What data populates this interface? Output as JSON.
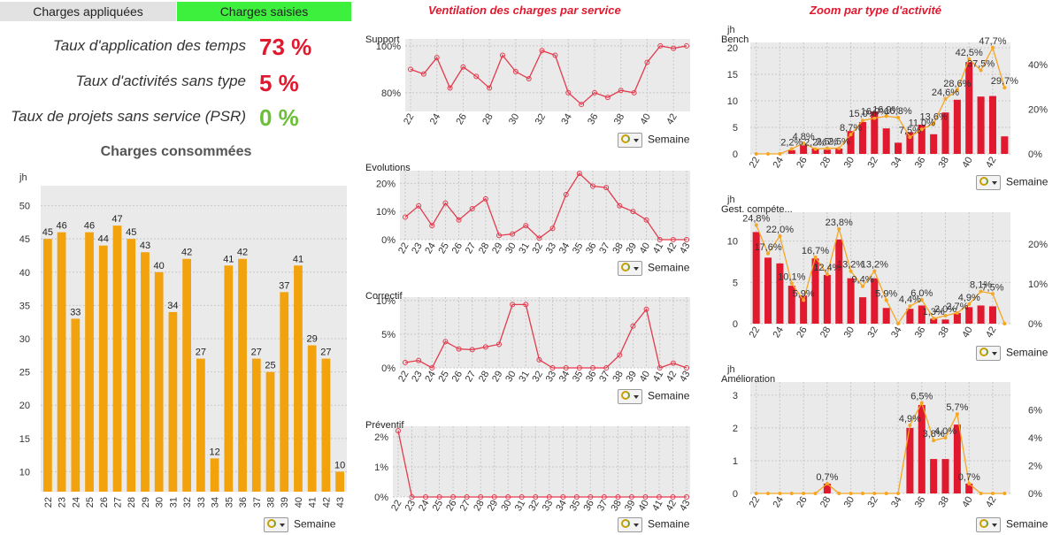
{
  "tabs": [
    {
      "label": "Charges appliquées",
      "active": false
    },
    {
      "label": "Charges saisies",
      "active": true
    }
  ],
  "kpis": [
    {
      "label": "Taux d'application des temps",
      "value": "73 %",
      "color": "#e0192f"
    },
    {
      "label": "Taux d'activités sans type",
      "value": "5 %",
      "color": "#e0192f"
    },
    {
      "label": "Taux de projets sans service (PSR)",
      "value": "0 %",
      "color": "#6cbf3a"
    }
  ],
  "sections": {
    "ventilation_title": "Ventilation des charges par service",
    "zoom_title": "Zoom par type d'activité"
  },
  "week_selector": {
    "label": "Semaine"
  },
  "colors": {
    "accent_red": "#e0192f",
    "bar_orange": "#f2a20c",
    "line_red": "#e23b4e",
    "line_orange": "#f5a623",
    "plot_bg": "#eaeaea"
  },
  "chart_data": [
    {
      "id": "consumed",
      "type": "bar",
      "title": "Charges consommées",
      "ylabel": "jh",
      "xlabel": "",
      "categories": [
        "22",
        "23",
        "24",
        "25",
        "26",
        "27",
        "28",
        "29",
        "30",
        "31",
        "32",
        "33",
        "34",
        "35",
        "36",
        "37",
        "38",
        "39",
        "40",
        "41",
        "42",
        "43"
      ],
      "values": [
        45,
        46,
        33,
        46,
        44,
        47,
        45,
        43,
        40,
        34,
        42,
        27,
        12,
        41,
        42,
        27,
        25,
        37,
        41,
        29,
        27,
        10
      ],
      "ylim": [
        7,
        53
      ],
      "yticks": [
        10,
        15,
        20,
        25,
        30,
        35,
        40,
        45,
        50
      ],
      "grid": true
    },
    {
      "id": "support",
      "type": "line",
      "title": "Support",
      "x": [
        "22",
        "23",
        "24",
        "25",
        "26",
        "27",
        "28",
        "29",
        "30",
        "31",
        "32",
        "33",
        "34",
        "35",
        "36",
        "37",
        "38",
        "39",
        "40",
        "41",
        "42",
        "43"
      ],
      "values": [
        0.9,
        0.88,
        0.95,
        0.82,
        0.91,
        0.87,
        0.82,
        0.96,
        0.89,
        0.86,
        0.98,
        0.96,
        0.8,
        0.75,
        0.8,
        0.78,
        0.81,
        0.8,
        0.93,
        1.0,
        0.99,
        1.0
      ],
      "ylim": [
        0.72,
        1.03
      ],
      "yticks": [
        {
          "v": 0.8,
          "label": "80%"
        },
        {
          "v": 1.0,
          "label": "100%"
        }
      ],
      "xticks": [
        "22",
        "24",
        "26",
        "28",
        "30",
        "32",
        "34",
        "36",
        "38",
        "40",
        "42"
      ]
    },
    {
      "id": "evolutions",
      "type": "line",
      "title": "Evolutions",
      "x": [
        "22",
        "23",
        "24",
        "25",
        "26",
        "27",
        "28",
        "29",
        "30",
        "31",
        "32",
        "33",
        "34",
        "35",
        "36",
        "37",
        "38",
        "39",
        "40",
        "41",
        "42",
        "43"
      ],
      "values": [
        0.08,
        0.12,
        0.05,
        0.13,
        0.07,
        0.11,
        0.145,
        0.015,
        0.02,
        0.05,
        0.005,
        0.04,
        0.16,
        0.235,
        0.19,
        0.185,
        0.12,
        0.1,
        0.07,
        0.0,
        0.0,
        0.0
      ],
      "ylim": [
        0,
        0.245
      ],
      "yticks": [
        {
          "v": 0,
          "label": "0%"
        },
        {
          "v": 0.1,
          "label": "10%"
        },
        {
          "v": 0.2,
          "label": "20%"
        }
      ],
      "xticks": [
        "22",
        "23",
        "24",
        "25",
        "26",
        "27",
        "28",
        "29",
        "30",
        "31",
        "32",
        "33",
        "34",
        "35",
        "36",
        "37",
        "38",
        "39",
        "40",
        "41",
        "42",
        "43"
      ]
    },
    {
      "id": "correctif",
      "type": "line",
      "title": "Correctif",
      "x": [
        "22",
        "23",
        "24",
        "25",
        "26",
        "27",
        "28",
        "29",
        "30",
        "31",
        "32",
        "33",
        "34",
        "35",
        "36",
        "37",
        "38",
        "39",
        "40",
        "41",
        "42",
        "43"
      ],
      "values": [
        0.008,
        0.011,
        0.0,
        0.039,
        0.028,
        0.027,
        0.031,
        0.035,
        0.094,
        0.094,
        0.012,
        0.0,
        0.0,
        0.0,
        0.0,
        0.0,
        0.019,
        0.062,
        0.087,
        0.0,
        0.007,
        0.0
      ],
      "ylim": [
        0,
        0.105
      ],
      "yticks": [
        {
          "v": 0,
          "label": "0%"
        },
        {
          "v": 0.05,
          "label": "5%"
        },
        {
          "v": 0.1,
          "label": "10%"
        }
      ],
      "xticks": [
        "22",
        "23",
        "24",
        "25",
        "26",
        "27",
        "28",
        "29",
        "30",
        "31",
        "32",
        "33",
        "34",
        "35",
        "36",
        "37",
        "38",
        "39",
        "40",
        "41",
        "42",
        "43"
      ]
    },
    {
      "id": "preventif",
      "type": "line",
      "title": "Préventif",
      "x": [
        "22",
        "23",
        "24",
        "25",
        "26",
        "27",
        "28",
        "29",
        "30",
        "31",
        "32",
        "33",
        "34",
        "35",
        "36",
        "37",
        "38",
        "39",
        "40",
        "41",
        "42",
        "43"
      ],
      "values": [
        0.022,
        0,
        0,
        0,
        0,
        0,
        0,
        0,
        0,
        0,
        0,
        0,
        0,
        0,
        0,
        0,
        0,
        0,
        0,
        0,
        0,
        0
      ],
      "ylim": [
        0,
        0.0235
      ],
      "yticks": [
        {
          "v": 0,
          "label": "0%"
        },
        {
          "v": 0.01,
          "label": "1%"
        },
        {
          "v": 0.02,
          "label": "2%"
        }
      ],
      "xticks": [
        "22",
        "23",
        "24",
        "25",
        "26",
        "27",
        "28",
        "29",
        "30",
        "31",
        "32",
        "33",
        "34",
        "35",
        "36",
        "37",
        "38",
        "39",
        "40",
        "41",
        "42",
        "43"
      ]
    },
    {
      "id": "bench",
      "type": "bar",
      "title": "Bench",
      "ylabel": "jh",
      "x": [
        "22",
        "23",
        "24",
        "25",
        "26",
        "27",
        "28",
        "29",
        "30",
        "31",
        "32",
        "33",
        "34",
        "35",
        "36",
        "37",
        "38",
        "39",
        "40",
        "41",
        "42",
        "43"
      ],
      "bars": [
        0,
        0,
        0,
        0.7,
        1.6,
        1.0,
        0.8,
        1.0,
        4.3,
        6.0,
        8.0,
        4.8,
        2.1,
        4.1,
        5.5,
        3.7,
        7.8,
        10.2,
        17.3,
        10.8,
        10.9,
        3.3
      ],
      "ylim_left": [
        0,
        21
      ],
      "yticks_left": [
        0,
        5,
        10,
        15,
        20
      ],
      "line": [
        0,
        0,
        0,
        0.022,
        0.048,
        0.022,
        0.025,
        0.025,
        0.087,
        0.15,
        0.16,
        0.169,
        0.163,
        0.075,
        0.11,
        0.136,
        0.246,
        0.286,
        0.425,
        0.375,
        0.477,
        0.297
      ],
      "ylim_right": [
        0,
        0.5
      ],
      "yticks_right": [
        {
          "v": 0,
          "label": "0%"
        },
        {
          "v": 0.2,
          "label": "20%"
        },
        {
          "v": 0.4,
          "label": "40%"
        }
      ],
      "point_labels": [
        "",
        "",
        "",
        "2,2%",
        "4,8%",
        "2,2%",
        "2,5%",
        "2,5%",
        "8,7%",
        "15,0%",
        "16,0%",
        "16,9%",
        "16,3%",
        "7,5%",
        "11,0%",
        "13,6%",
        "24,6%",
        "28,6%",
        "42,5%",
        "37,5%",
        "47,7%",
        "29,7%"
      ],
      "xticks": [
        "22",
        "24",
        "26",
        "28",
        "30",
        "32",
        "34",
        "36",
        "38",
        "40",
        "42"
      ]
    },
    {
      "id": "gestcomp",
      "type": "bar",
      "title": "Gest. compéte...",
      "ylabel": "jh",
      "x": [
        "22",
        "23",
        "24",
        "25",
        "26",
        "27",
        "28",
        "29",
        "30",
        "31",
        "32",
        "33",
        "34",
        "35",
        "36",
        "37",
        "38",
        "39",
        "40",
        "41",
        "42",
        "43"
      ],
      "bars": [
        11.1,
        8.0,
        7.3,
        4.6,
        3.4,
        7.9,
        5.9,
        10.2,
        5.5,
        3.2,
        5.5,
        1.9,
        0,
        1.8,
        2.2,
        0.6,
        0.5,
        1.3,
        2.0,
        2.2,
        2.1,
        0
      ],
      "ylim_left": [
        0,
        13.5
      ],
      "yticks_left": [
        0,
        5,
        10
      ],
      "line": [
        0.248,
        0.176,
        0.22,
        0.101,
        0.059,
        0.167,
        0.124,
        0.238,
        0.132,
        0.094,
        0.132,
        0.059,
        0.0,
        0.044,
        0.06,
        0.013,
        0.02,
        0.027,
        0.049,
        0.081,
        0.075,
        0.0
      ],
      "ylim_right": [
        0,
        0.28
      ],
      "yticks_right": [
        {
          "v": 0,
          "label": "0%"
        },
        {
          "v": 0.1,
          "label": "10%"
        },
        {
          "v": 0.2,
          "label": "20%"
        }
      ],
      "point_labels": [
        "24,8%",
        "17,6%",
        "22,0%",
        "10,1%",
        "5,9%",
        "16,7%",
        "12,4%",
        "23,8%",
        "13,2%",
        "9,4%",
        "13,2%",
        "5,9%",
        "",
        "4,4%",
        "6,0%",
        "1,3%",
        "2,0%",
        "2,7%",
        "4,9%",
        "8,1%",
        "7,5%",
        ""
      ],
      "xticks": [
        "22",
        "24",
        "26",
        "28",
        "30",
        "32",
        "34",
        "36",
        "38",
        "40",
        "42"
      ]
    },
    {
      "id": "amelioration",
      "type": "bar",
      "title": "Amélioration",
      "ylabel": "jh",
      "x": [
        "22",
        "23",
        "24",
        "25",
        "26",
        "27",
        "28",
        "29",
        "30",
        "31",
        "32",
        "33",
        "34",
        "35",
        "36",
        "37",
        "38",
        "39",
        "40",
        "41",
        "42",
        "43"
      ],
      "bars": [
        0,
        0,
        0,
        0,
        0,
        0,
        0.3,
        0,
        0,
        0,
        0,
        0,
        0,
        2.0,
        2.7,
        1.05,
        1.05,
        2.1,
        0.3,
        0,
        0,
        0
      ],
      "ylim_left": [
        0,
        3.4
      ],
      "yticks_left": [
        0,
        1,
        2,
        3
      ],
      "line": [
        0,
        0,
        0,
        0,
        0,
        0,
        0.007,
        0,
        0,
        0,
        0,
        0,
        0,
        0.049,
        0.065,
        0.038,
        0.04,
        0.057,
        0.007,
        0,
        0,
        0
      ],
      "ylim_right": [
        0,
        0.08
      ],
      "yticks_right": [
        {
          "v": 0,
          "label": "0%"
        },
        {
          "v": 0.02,
          "label": "2%"
        },
        {
          "v": 0.04,
          "label": "4%"
        },
        {
          "v": 0.06,
          "label": "6%"
        }
      ],
      "point_labels": [
        "",
        "",
        "",
        "",
        "",
        "",
        "0,7%",
        "",
        "",
        "",
        "",
        "",
        "",
        "4,9%",
        "6,5%",
        "3,8%",
        "4,0%",
        "5,7%",
        "0,7%",
        "",
        "",
        ""
      ],
      "xticks": [
        "22",
        "24",
        "26",
        "28",
        "30",
        "32",
        "34",
        "36",
        "38",
        "40",
        "42"
      ]
    }
  ]
}
